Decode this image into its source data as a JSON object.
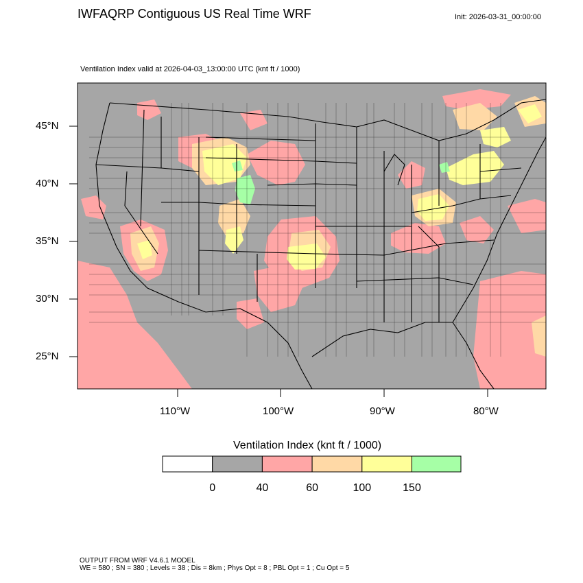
{
  "header": {
    "title": "IWFAQRP Contiguous US Real Time WRF",
    "init": "Init: 2026-03-31_00:00:00",
    "subtitle": "Ventilation Index valid at 2026-04-03_13:00:00 UTC   (knt ft / 1000)"
  },
  "map": {
    "lat_labels": [
      "45°N",
      "40°N",
      "35°N",
      "30°N",
      "25°N"
    ],
    "lon_labels": [
      "110°W",
      "100°W",
      "90°W",
      "80°W"
    ],
    "colors": {
      "background_fill": "#a6a6a6",
      "class_40_60": "#ffa6a6",
      "class_60_100": "#ffd9a6",
      "class_100_150": "#ffff99",
      "class_150_plus": "#a6ffa6",
      "boundaries": "#000000"
    }
  },
  "colorbar": {
    "title": "Ventilation Index  (knt ft / 1000)",
    "colors": [
      "#ffffff",
      "#a6a6a6",
      "#ffa6a6",
      "#ffd9a6",
      "#ffff99",
      "#a6ffa6"
    ],
    "ticks": [
      "0",
      "40",
      "60",
      "100",
      "150"
    ]
  },
  "footer": {
    "line1": "OUTPUT FROM WRF V4.6.1 MODEL",
    "line2": "WE = 580 ; SN = 380 ; Levels = 38 ; Dis = 8km ; Phys Opt = 8 ; PBL Opt = 1 ; Cu Opt = 5"
  }
}
